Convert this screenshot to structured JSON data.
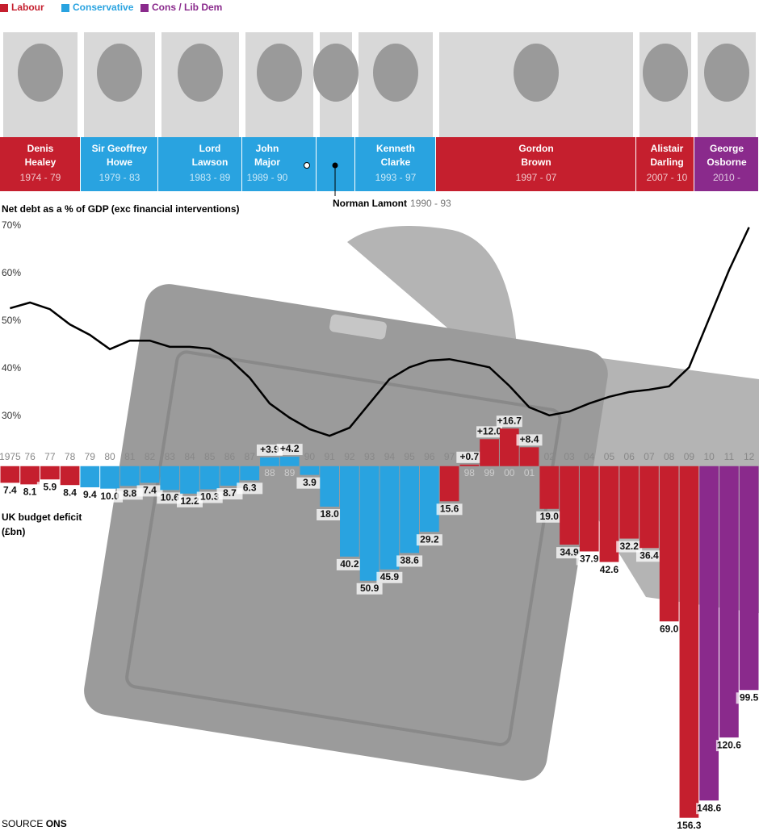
{
  "legend": [
    {
      "name": "Labour",
      "color": "#c51f2e"
    },
    {
      "name": "Conservative",
      "color": "#29a3e0"
    },
    {
      "name": "Cons / Lib Dem",
      "color": "#8a2a8c"
    }
  ],
  "chancellors": [
    {
      "name": [
        "Denis",
        "Healey"
      ],
      "years": "1974 - 79",
      "color": "#c51f2e"
    },
    {
      "name": [
        "Sir Geoffrey",
        "Howe"
      ],
      "years": "1979 - 83",
      "color": "#29a3e0"
    },
    {
      "name": [
        "Lord",
        "Lawson"
      ],
      "years": "1983 - 89",
      "color": "#29a3e0"
    },
    {
      "name": [
        "John",
        "Major"
      ],
      "years": "1989 - 90",
      "color": "#29a3e0"
    },
    {
      "name": [
        "Norman Lamont"
      ],
      "years": "1990 - 93",
      "color": "#29a3e0"
    },
    {
      "name": [
        "Kenneth",
        "Clarke"
      ],
      "years": "1993 - 97",
      "color": "#29a3e0"
    },
    {
      "name": [
        "Gordon",
        "Brown"
      ],
      "years": "1997 - 07",
      "color": "#c51f2e"
    },
    {
      "name": [
        "Alistair",
        "Darling"
      ],
      "years": "2007 - 10",
      "color": "#c51f2e"
    },
    {
      "name": [
        "George",
        "Osborne"
      ],
      "years": "2010 -",
      "color": "#8a2a8c"
    }
  ],
  "chart_data": [
    {
      "type": "line",
      "title": "Net debt as a % of GDP (exc financial interventions)",
      "color": "#000000",
      "categories": [
        "1975",
        "76",
        "77",
        "78",
        "79",
        "80",
        "81",
        "82",
        "83",
        "84",
        "85",
        "86",
        "87",
        "88",
        "89",
        "90",
        "91",
        "92",
        "93",
        "94",
        "95",
        "96",
        "97",
        "98",
        "99",
        "00",
        "01",
        "02",
        "03",
        "04",
        "05",
        "06",
        "07",
        "08",
        "09",
        "10",
        "11",
        "12"
      ],
      "values": [
        52.7,
        53.9,
        52.5,
        49.3,
        47.1,
        44.1,
        45.9,
        45.9,
        44.6,
        44.6,
        44.2,
        42.0,
        38.1,
        32.7,
        29.7,
        27.3,
        25.9,
        27.6,
        32.7,
        37.8,
        40.3,
        41.7,
        42.0,
        41.2,
        40.3,
        36.4,
        31.9,
        30.2,
        31.0,
        32.7,
        34.1,
        35.1,
        35.6,
        36.3,
        40.3,
        50.5,
        60.7,
        69.7
      ],
      "ylim": [
        20,
        75
      ],
      "yticks": [
        {
          "value": 30,
          "label": "30%"
        },
        {
          "value": 40,
          "label": "40%"
        },
        {
          "value": 50,
          "label": "50%"
        },
        {
          "value": 60,
          "label": "60%"
        },
        {
          "value": 70,
          "label": "70%"
        }
      ]
    },
    {
      "type": "bar",
      "title": "UK budget deficit",
      "unit": "(£bn)",
      "categories": [
        "1975",
        "76",
        "77",
        "78",
        "79",
        "80",
        "81",
        "82",
        "83",
        "84",
        "85",
        "86",
        "87",
        "88",
        "89",
        "90",
        "91",
        "92",
        "93",
        "94",
        "95",
        "96",
        "97",
        "98",
        "99",
        "00",
        "01",
        "02",
        "03",
        "04",
        "05",
        "06",
        "07",
        "08",
        "09",
        "10",
        "11",
        "12"
      ],
      "values": [
        -7.4,
        -8.1,
        -5.9,
        -8.4,
        -9.4,
        -10.0,
        -8.8,
        -7.4,
        -10.6,
        -12.2,
        -10.3,
        -8.7,
        -6.3,
        3.9,
        4.2,
        -3.9,
        -18.0,
        -40.2,
        -50.9,
        -45.9,
        -38.6,
        -29.2,
        -15.6,
        0.7,
        12.0,
        16.7,
        8.4,
        -19.0,
        -34.9,
        -37.9,
        -42.6,
        -32.2,
        -36.4,
        -69.0,
        -156.3,
        -148.6,
        -120.6,
        -99.5
      ],
      "value_labels": [
        "7.4",
        "8.1",
        "5.9",
        "8.4",
        "9.4",
        "10.0",
        "8.8",
        "7.4",
        "10.6",
        "12.2",
        "10.3",
        "8.7",
        "6.3",
        "+3.9",
        "+4.2",
        "3.9",
        "18.0",
        "40.2",
        "50.9",
        "45.9",
        "38.6",
        "29.2",
        "15.6",
        "+0.7",
        "+12.0",
        "+16.7",
        "+8.4",
        "19.0",
        "34.9",
        "37.9",
        "42.6",
        "32.2",
        "36.4",
        "69.0",
        "156.3",
        "148.6",
        "120.6",
        "99.5"
      ],
      "colors": [
        "#c51f2e",
        "#c51f2e",
        "#c51f2e",
        "#c51f2e",
        "#29a3e0",
        "#29a3e0",
        "#29a3e0",
        "#29a3e0",
        "#29a3e0",
        "#29a3e0",
        "#29a3e0",
        "#29a3e0",
        "#29a3e0",
        "#29a3e0",
        "#29a3e0",
        "#29a3e0",
        "#29a3e0",
        "#29a3e0",
        "#29a3e0",
        "#29a3e0",
        "#29a3e0",
        "#29a3e0",
        "#c51f2e",
        "#c51f2e",
        "#c51f2e",
        "#c51f2e",
        "#c51f2e",
        "#c51f2e",
        "#c51f2e",
        "#c51f2e",
        "#c51f2e",
        "#c51f2e",
        "#c51f2e",
        "#c51f2e",
        "#c51f2e",
        "#8a2a8c",
        "#8a2a8c",
        "#8a2a8c"
      ],
      "ylim": [
        -160,
        20
      ]
    }
  ],
  "source_label": "SOURCE",
  "source": "ONS"
}
